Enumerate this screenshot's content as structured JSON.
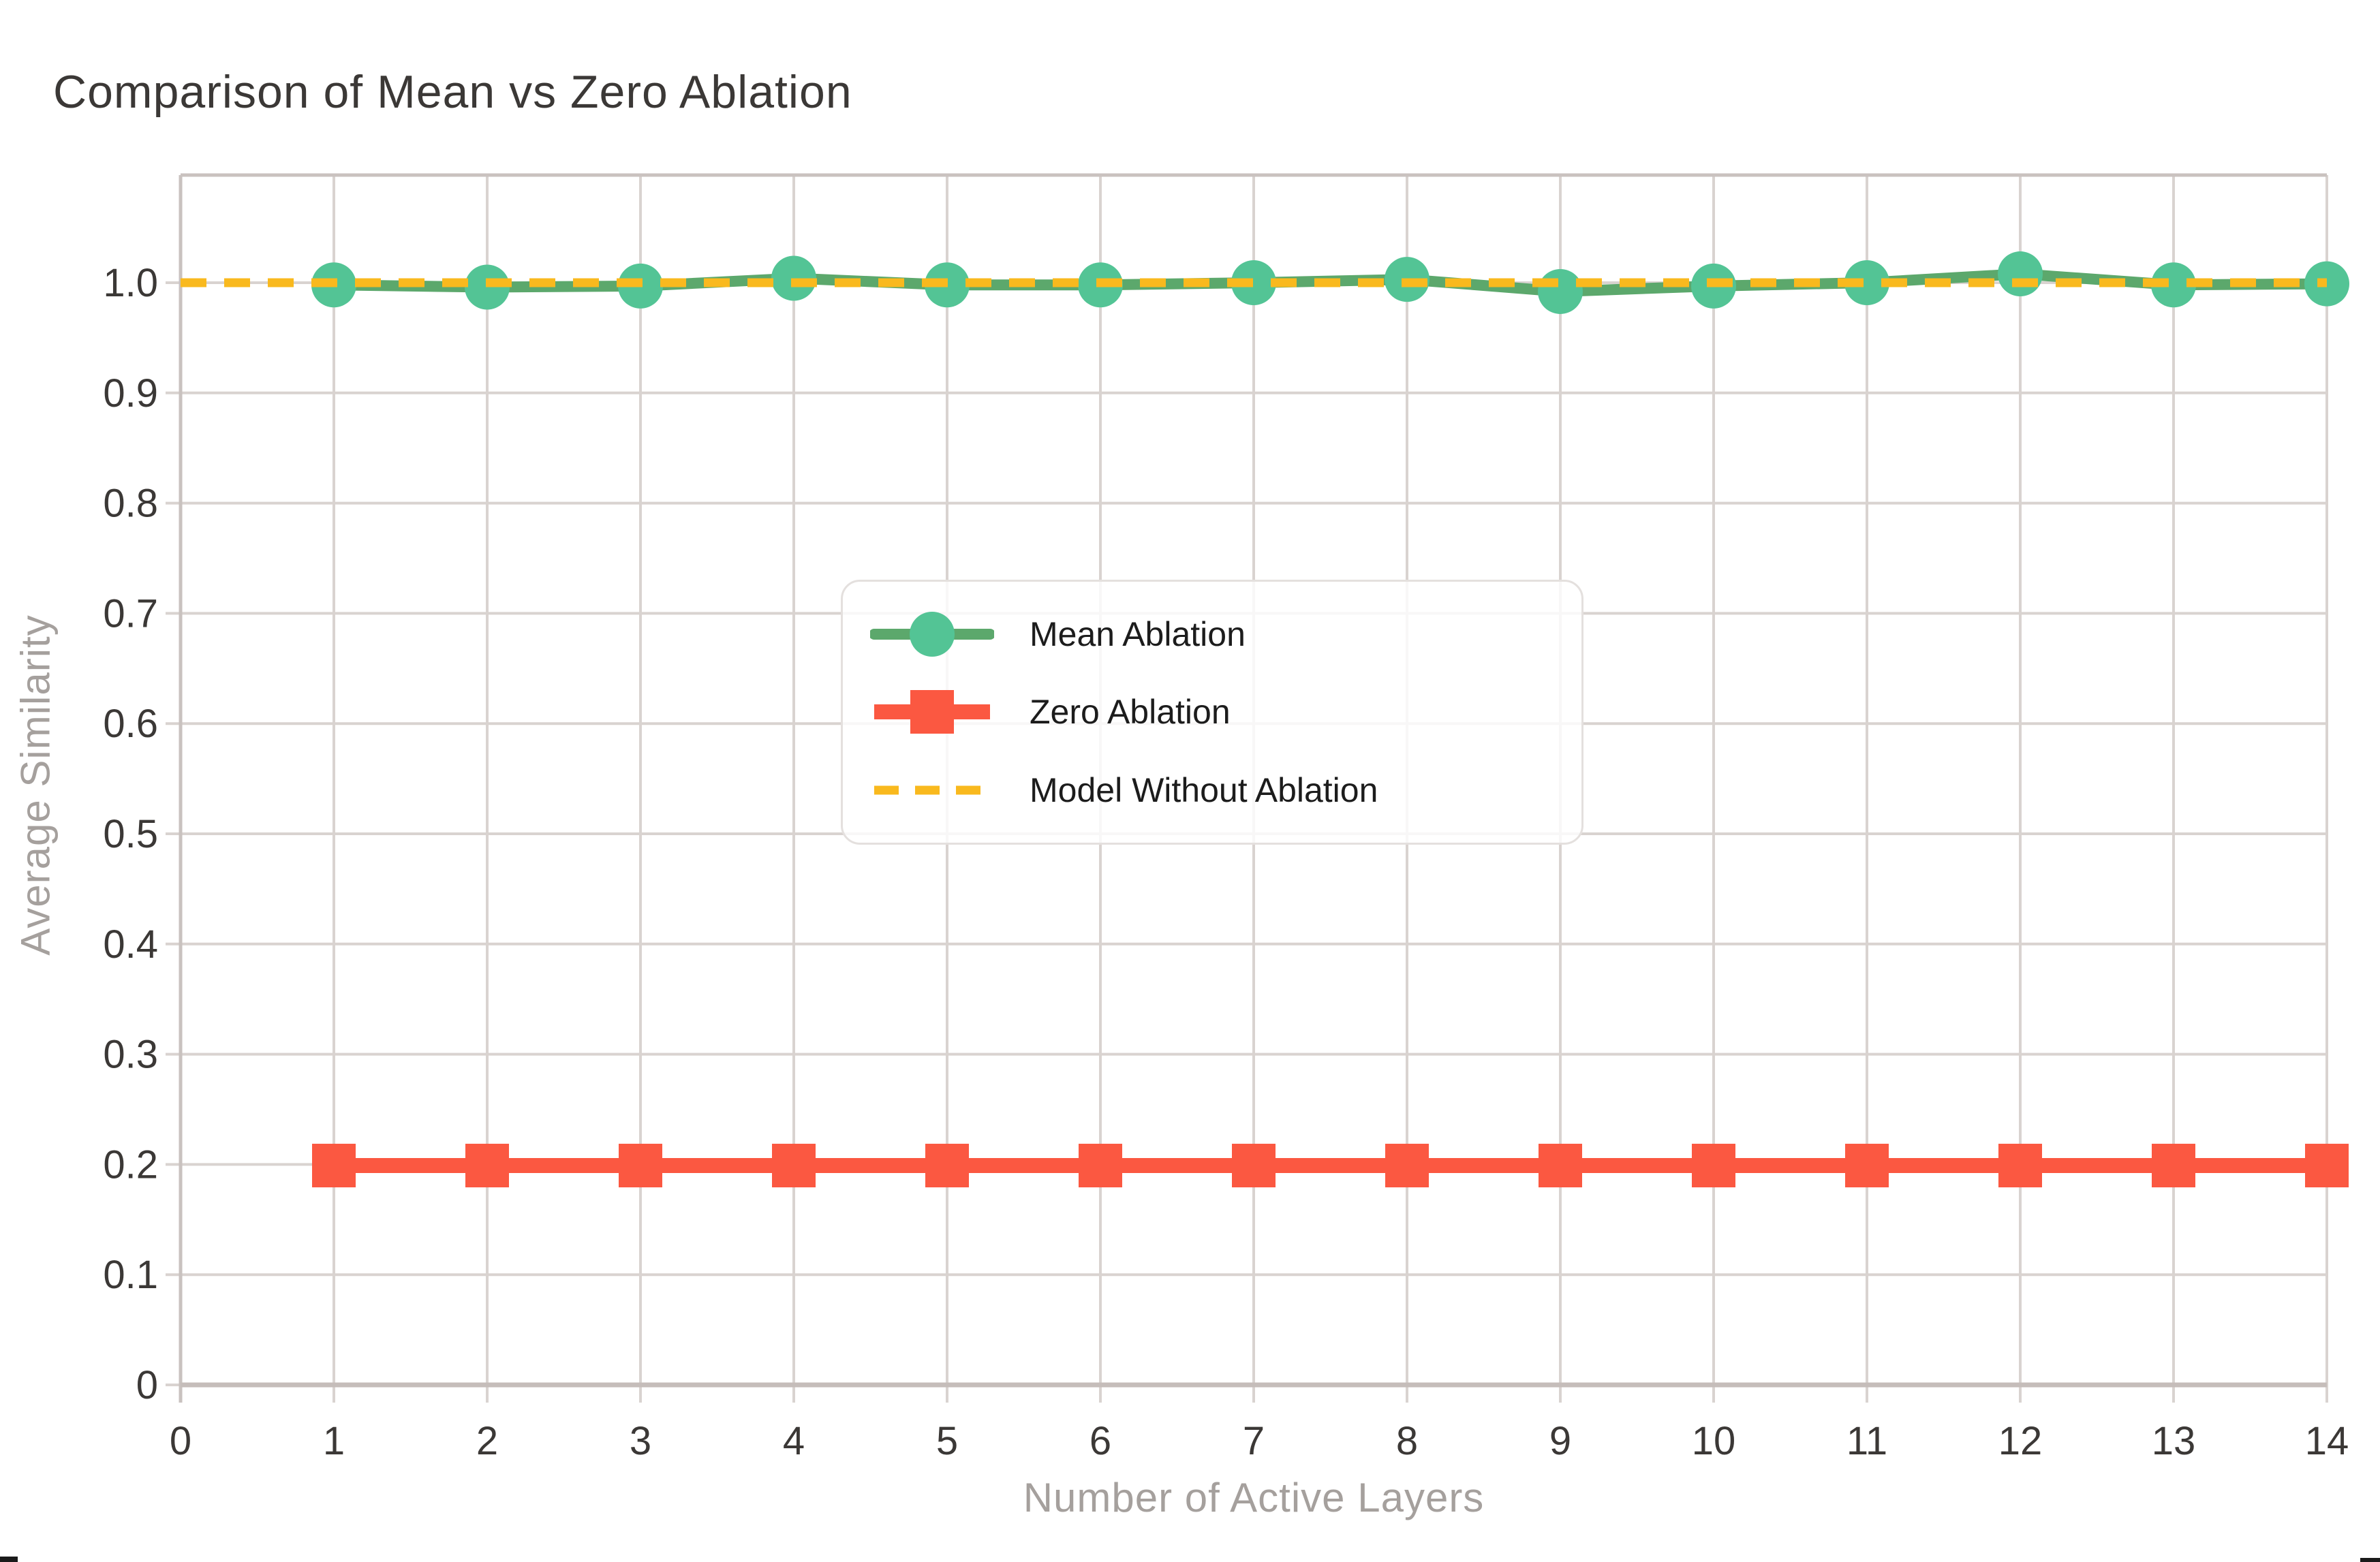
{
  "chart_data": {
    "type": "line",
    "title": "Comparison of Mean vs Zero Ablation",
    "xlabel": "Number of Active Layers",
    "ylabel": "Average Similarity",
    "xlim": [
      0,
      14
    ],
    "ylim": [
      0,
      1.096
    ],
    "grid": true,
    "legend_position": "inside upper-center-left",
    "x_ticks": [
      0,
      1,
      2,
      3,
      4,
      5,
      6,
      7,
      8,
      9,
      10,
      11,
      12,
      13,
      14
    ],
    "y_ticks": [
      0,
      0.1,
      0.2,
      0.3,
      0.4,
      0.5,
      0.6,
      0.7,
      0.8,
      0.9,
      1.0
    ],
    "y_tick_labels": [
      "0",
      "0.1",
      "0.2",
      "0.3",
      "0.4",
      "0.5",
      "0.6",
      "0.7",
      "0.8",
      "0.9",
      "1.0"
    ],
    "series": [
      {
        "name": "Mean Ablation",
        "marker": "circle",
        "line_style": "solid",
        "line_color": "#5CA86C",
        "marker_color": "#53C495",
        "x": [
          1,
          2,
          3,
          4,
          5,
          6,
          7,
          8,
          9,
          10,
          11,
          12,
          13,
          14
        ],
        "y": [
          0.998,
          0.996,
          0.997,
          1.004,
          0.998,
          0.998,
          1.0,
          1.003,
          0.992,
          0.997,
          1.0,
          1.008,
          0.998,
          0.999
        ]
      },
      {
        "name": "Zero Ablation",
        "marker": "square",
        "line_style": "solid",
        "line_color": "#FB5841",
        "marker_color": "#FB5841",
        "x": [
          1,
          2,
          3,
          4,
          5,
          6,
          7,
          8,
          9,
          10,
          11,
          12,
          13,
          14
        ],
        "y": [
          0.199,
          0.199,
          0.199,
          0.199,
          0.199,
          0.199,
          0.199,
          0.199,
          0.199,
          0.199,
          0.199,
          0.199,
          0.199,
          0.199
        ]
      },
      {
        "name": "Model Without Ablation",
        "marker": "none",
        "line_style": "dashed",
        "line_color": "#F9B91E",
        "marker_color": "#F9B91E",
        "x": [
          0,
          14
        ],
        "y": [
          1.0,
          1.0
        ]
      }
    ]
  },
  "colors": {
    "background": "#FFFFFF",
    "grid": "#D9D3D0",
    "spine": "#C9C2BF",
    "bottom_spine": "#C5BDBA",
    "tick_text": "#3B3836",
    "title_text": "#3B3836",
    "axis_title_text": "#A5A09D",
    "legend_border": "#E4E0DE",
    "legend_text": "#1C1C1C",
    "edge_artifact": "#1A1A1A"
  }
}
